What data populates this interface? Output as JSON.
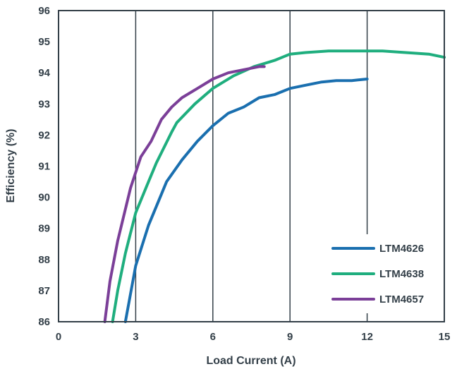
{
  "chart_data": {
    "type": "line",
    "xlabel": "Load Current (A)",
    "ylabel": "Efficiency (%)",
    "xlim": [
      0,
      15
    ],
    "ylim": [
      86,
      96
    ],
    "xticks": [
      0,
      3,
      6,
      9,
      12,
      15
    ],
    "yticks": [
      86,
      87,
      88,
      89,
      90,
      91,
      92,
      93,
      94,
      95,
      96
    ],
    "grid": "vertical",
    "legend_position": "bottom-right",
    "series": [
      {
        "name": "LTM4626",
        "color": "#1a6faf",
        "points": [
          [
            2.6,
            86.0
          ],
          [
            2.8,
            86.9
          ],
          [
            3.0,
            87.8
          ],
          [
            3.5,
            89.1
          ],
          [
            4.0,
            90.1
          ],
          [
            4.2,
            90.5
          ],
          [
            4.8,
            91.2
          ],
          [
            5.4,
            91.8
          ],
          [
            6.0,
            92.3
          ],
          [
            6.6,
            92.7
          ],
          [
            7.2,
            92.9
          ],
          [
            7.8,
            93.2
          ],
          [
            8.4,
            93.3
          ],
          [
            9.0,
            93.5
          ],
          [
            9.6,
            93.6
          ],
          [
            10.2,
            93.7
          ],
          [
            10.8,
            93.75
          ],
          [
            11.4,
            93.75
          ],
          [
            12.0,
            93.8
          ]
        ]
      },
      {
        "name": "LTM4638",
        "color": "#1fae7e",
        "points": [
          [
            2.1,
            86.0
          ],
          [
            2.3,
            87.0
          ],
          [
            2.6,
            88.2
          ],
          [
            3.0,
            89.5
          ],
          [
            3.5,
            90.5
          ],
          [
            3.8,
            91.1
          ],
          [
            4.4,
            92.1
          ],
          [
            4.6,
            92.4
          ],
          [
            5.3,
            93.0
          ],
          [
            6.0,
            93.5
          ],
          [
            6.8,
            93.9
          ],
          [
            7.6,
            94.2
          ],
          [
            8.4,
            94.4
          ],
          [
            9.0,
            94.6
          ],
          [
            9.6,
            94.65
          ],
          [
            10.5,
            94.7
          ],
          [
            11.4,
            94.7
          ],
          [
            12.6,
            94.7
          ],
          [
            13.5,
            94.65
          ],
          [
            14.4,
            94.6
          ],
          [
            15.0,
            94.5
          ]
        ]
      },
      {
        "name": "LTM4657",
        "color": "#7b3f98",
        "points": [
          [
            1.8,
            86.0
          ],
          [
            2.0,
            87.3
          ],
          [
            2.3,
            88.6
          ],
          [
            2.8,
            90.3
          ],
          [
            3.2,
            91.3
          ],
          [
            3.6,
            91.8
          ],
          [
            4.0,
            92.5
          ],
          [
            4.4,
            92.9
          ],
          [
            4.8,
            93.2
          ],
          [
            5.4,
            93.5
          ],
          [
            6.0,
            93.8
          ],
          [
            6.6,
            94.0
          ],
          [
            7.2,
            94.1
          ],
          [
            7.8,
            94.2
          ],
          [
            8.0,
            94.2
          ]
        ]
      }
    ]
  }
}
